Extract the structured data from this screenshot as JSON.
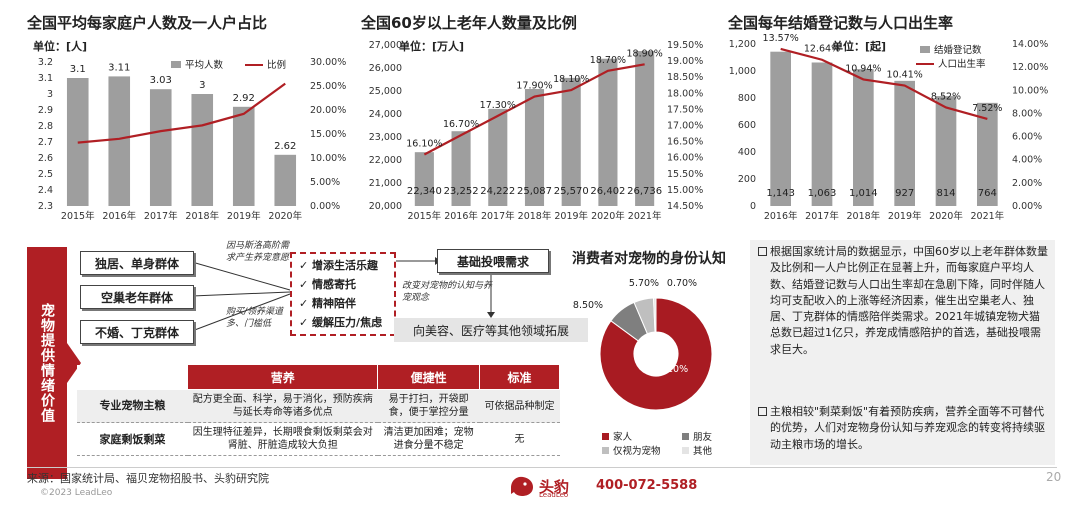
{
  "chart1": {
    "title": "全国平均每家庭户人数及一人户占比",
    "unit": "单位：[人]",
    "legend_bar": "平均人数",
    "legend_line": "比例",
    "left_ticks": [
      "3.2",
      "3.1",
      "3",
      "2.9",
      "2.8",
      "2.7",
      "2.6",
      "2.5",
      "2.4",
      "2.3"
    ],
    "right_ticks": [
      "30.00%",
      "25.00%",
      "20.00%",
      "15.00%",
      "10.00%",
      "5.00%",
      "0.00%"
    ],
    "bar_color": "#9e9e9e",
    "line_color": "#b01f24"
  },
  "chart2": {
    "title": "全国60岁以上老年人数量及比例",
    "unit": "单位：[万人]",
    "left_ticks": [
      "27,000",
      "26,000",
      "25,000",
      "24,000",
      "23,000",
      "22,000",
      "21,000",
      "20,000"
    ],
    "right_ticks": [
      "19.50%",
      "19.00%",
      "18.50%",
      "18.00%",
      "17.50%",
      "17.00%",
      "16.50%",
      "16.00%",
      "15.50%",
      "15.00%",
      "14.50%"
    ]
  },
  "chart3": {
    "title": "全国每年结婚登记数与人口出生率",
    "unit": "单位：[起]",
    "legend_bar": "结婚登记数",
    "legend_line": "人口出生率",
    "left_ticks": [
      "1,200",
      "1,000",
      "800",
      "600",
      "400",
      "200",
      "0"
    ],
    "right_ticks": [
      "14.00%",
      "12.00%",
      "10.00%",
      "8.00%",
      "6.00%",
      "4.00%",
      "2.00%",
      "0.00%"
    ]
  },
  "chart_data": [
    {
      "type": "bar",
      "categories": [
        "2015年",
        "2016年",
        "2017年",
        "2018年",
        "2019年",
        "2020年"
      ],
      "series": [
        {
          "name": "平均人数",
          "values": [
            3.1,
            3.11,
            3.03,
            3,
            2.92,
            2.62
          ],
          "labels": [
            "3.1",
            "3.11",
            "3.03",
            "3",
            "2.92",
            "2.62"
          ]
        },
        {
          "name": "比例",
          "values": [
            13.2,
            14.0,
            15.6,
            16.8,
            19.2,
            25.5
          ]
        }
      ],
      "ylim": [
        2.3,
        3.2
      ],
      "y2lim": [
        0,
        30
      ]
    },
    {
      "type": "bar",
      "categories": [
        "2015年",
        "2016年",
        "2017年",
        "2018年",
        "2019年",
        "2020年",
        "2021年"
      ],
      "series": [
        {
          "values": [
            22340,
            23252,
            24222,
            25087,
            25570,
            26402,
            26736
          ],
          "labels": [
            "22,340",
            "23,252",
            "24,222",
            "25,087",
            "25,570",
            "26,402",
            "26,736"
          ]
        },
        {
          "values": [
            16.1,
            16.7,
            17.3,
            17.9,
            18.1,
            18.7,
            18.9
          ],
          "labels": [
            "16.10%",
            "16.70%",
            "17.30%",
            "17.90%",
            "18.10%",
            "18.70%",
            "18.90%"
          ]
        }
      ],
      "ylim": [
        20000,
        27000
      ],
      "y2lim": [
        14.5,
        19.5
      ]
    },
    {
      "type": "bar",
      "categories": [
        "2016年",
        "2017年",
        "2018年",
        "2019年",
        "2020年",
        "2021年"
      ],
      "series": [
        {
          "name": "结婚登记数",
          "values": [
            1143,
            1063,
            1014,
            927,
            814,
            764
          ],
          "labels": [
            "1,143",
            "1,063",
            "1,014",
            "927",
            "814",
            "764"
          ]
        },
        {
          "name": "人口出生率",
          "values": [
            13.57,
            12.64,
            10.94,
            10.41,
            8.52,
            7.52
          ],
          "labels": [
            "13.57%",
            "12.64%",
            "10.94%",
            "10.41%",
            "8.52%",
            "7.52%"
          ]
        }
      ],
      "ylim": [
        0,
        1200
      ],
      "y2lim": [
        0,
        14
      ]
    },
    {
      "type": "pie",
      "title": "消费者对宠物的身份认知",
      "categories": [
        "家人",
        "朋友",
        "仅视为宠物",
        "其他"
      ],
      "values": [
        85.1,
        8.5,
        5.7,
        0.7
      ],
      "labels": [
        "85.10%",
        "8.50%",
        "5.70%",
        "0.70%"
      ],
      "colors": [
        "#a81b22",
        "#7f7f7f",
        "#bfbfbf",
        "#e4e4e4"
      ]
    }
  ],
  "diagram": {
    "side_label": "宠物提供情绪价值",
    "groups": [
      "独居、单身群体",
      "空巢老年群体",
      "不婚、丁克群体"
    ],
    "note_top": "因马斯洛高阶需求产生养宠意愿",
    "note_bottom": "购买/领养渠道多、门槛低",
    "needs": [
      "增添生活乐趣",
      "情感寄托",
      "精神陪伴",
      "缓解压力/焦虑"
    ],
    "basic_need": "基础投喂需求",
    "change_note": "改变对宠物的认知与养宠观念",
    "expand": "向美容、医疗等其他领域拓展"
  },
  "table": {
    "headers": [
      "营养",
      "便捷性",
      "标准"
    ],
    "rows": [
      {
        "name": "专业宠物主粮",
        "nutrition": "配方更全面、科学，易于消化，预防疾病与延长寿命等诸多优点",
        "convenience": "易于打扫，开袋即食，便于掌控分量",
        "standard": "可依据品种制定"
      },
      {
        "name": "家庭剩饭剩菜",
        "nutrition": "因生理特征差异，长期喂食剩饭剩菜会对肾脏、肝脏造成较大负担",
        "convenience": "清洁更加困难；宠物进食分量不稳定",
        "standard": "无"
      }
    ]
  },
  "text_panel": {
    "p1": "根据国家统计局的数据显示，中国60岁以上老年群体数量及比例和一人户比例正在显著上升，而每家庭户平均人数、结婚登记数与人口出生率却在急剧下降，同时伴随人均可支配收入的上涨等经济因素，催生出空巢老人、独居、丁克群体的情感陪伴类需求。2021年城镇宠物犬猫总数已超过1亿只，养宠成情感陪护的首选，基础投喂需求巨大。",
    "p2": "主粮相较\"剩菜剩饭\"有着预防疾病，营养全面等不可替代的优势，人们对宠物身份认知与养宠观念的转变将持续驱动主粮市场的增长。"
  },
  "footer": {
    "source": "来源：国家统计局、福贝宠物招股书、头豹研究院",
    "copyright": "©2023 LeadLeo",
    "brand": "头豹",
    "brand_sub": "LeadLeo",
    "phone": "400-072-5588",
    "page": "20"
  }
}
